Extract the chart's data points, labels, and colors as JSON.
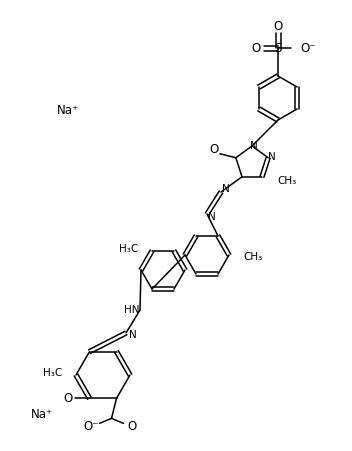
{
  "background_color": "#ffffff",
  "figsize": [
    3.52,
    4.51
  ],
  "dpi": 100,
  "lw": 1.1,
  "fs": 7.5,
  "na_plus_1": [
    68,
    110
  ],
  "na_plus_2": [
    42,
    415
  ]
}
